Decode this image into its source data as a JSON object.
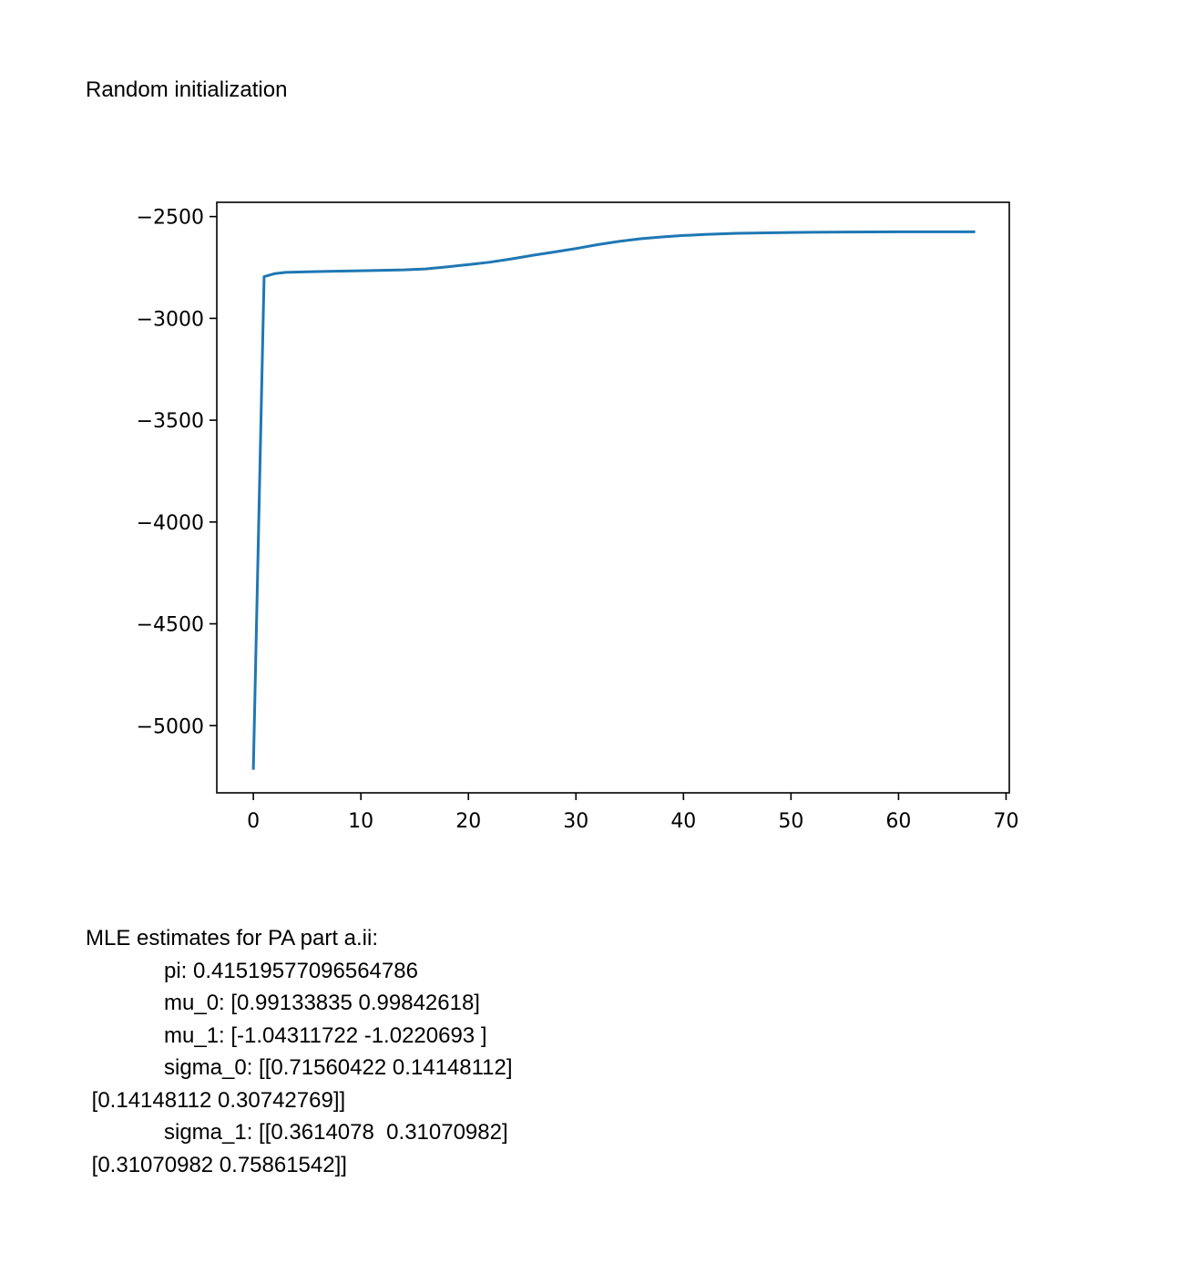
{
  "heading": "Random initialization",
  "chart_data": {
    "type": "line",
    "title": "",
    "xlabel": "",
    "ylabel": "",
    "xlim": [
      -3.4,
      70.3
    ],
    "ylim": [
      -5330,
      -2430
    ],
    "xticks": [
      0,
      10,
      20,
      30,
      40,
      50,
      60,
      70
    ],
    "yticks": [
      -2500,
      -3000,
      -3500,
      -4000,
      -4500,
      -5000
    ],
    "xtick_labels": [
      "0",
      "10",
      "20",
      "30",
      "40",
      "50",
      "60",
      "70"
    ],
    "ytick_labels": [
      "−2500",
      "−3000",
      "−3500",
      "−4000",
      "−4500",
      "−5000"
    ],
    "grid": false,
    "legend": "none",
    "series": [
      {
        "color": "#1f77b4",
        "x": [
          0,
          1,
          2,
          3,
          5,
          8,
          11,
          14,
          16,
          18,
          20,
          22,
          24,
          26,
          28,
          30,
          32,
          34,
          36,
          38,
          40,
          42,
          45,
          50,
          55,
          60,
          67
        ],
        "y": [
          -5210,
          -2795,
          -2780,
          -2774,
          -2771,
          -2768,
          -2765,
          -2762,
          -2757,
          -2747,
          -2736,
          -2724,
          -2708,
          -2690,
          -2674,
          -2657,
          -2638,
          -2622,
          -2609,
          -2600,
          -2593,
          -2588,
          -2582,
          -2578,
          -2576,
          -2575,
          -2575
        ]
      }
    ]
  },
  "mle": {
    "title": "MLE estimates for PA part a.ii:",
    "pi": "pi: 0.41519577096564786",
    "mu_0": "mu_0: [0.99133835 0.99842618]",
    "mu_1": "mu_1: [-1.04311722 -1.0220693 ]",
    "sigma_0_row1": "sigma_0: [[0.71560422 0.14148112]",
    "sigma_0_row2": " [0.14148112 0.30742769]]",
    "sigma_1_row1": "sigma_1: [[0.3614078  0.31070982]",
    "sigma_1_row2": " [0.31070982 0.75861542]]"
  }
}
